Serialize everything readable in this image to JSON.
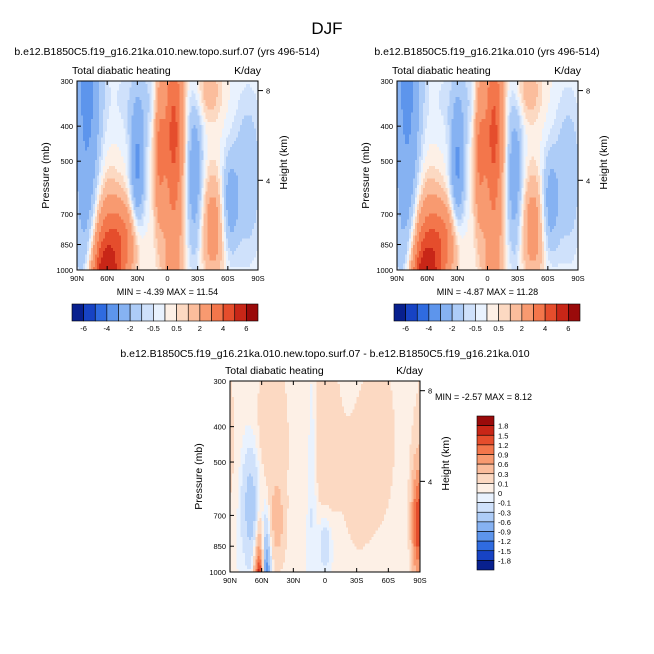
{
  "figure": {
    "title": "DJF"
  },
  "colors": {
    "colormap": [
      "#08208e",
      "#1743c4",
      "#2f6be0",
      "#5d95ec",
      "#86b2f2",
      "#adccf7",
      "#cfe1fb",
      "#e9f2fe",
      "#fdf0e6",
      "#fcd9c2",
      "#fbbd9c",
      "#f89a70",
      "#f3764b",
      "#e54d2c",
      "#c82617",
      "#9a0a0a"
    ],
    "line": "#000000"
  },
  "chart_data": [
    {
      "type": "heatmap",
      "title": "b.e12.B1850C5.f19_g16.21ka.010.new.topo.surf.07 (yrs 496-514)",
      "left_string": "Total diabatic heating",
      "right_string": "K/day",
      "ylabel": "Pressure (mb)",
      "ylabel_right": "Height (km)",
      "x_ticks": [
        "90N",
        "60N",
        "30N",
        "0",
        "30S",
        "60S",
        "90S"
      ],
      "y_ticks": [
        "300",
        "400",
        "500",
        "700",
        "850",
        "1000"
      ],
      "y_ticks_right": [
        "8",
        "4"
      ],
      "ylim": [
        1000,
        300
      ],
      "xlim": [
        90,
        -90
      ],
      "min_max_text": "MIN = -4.39  MAX = 11.54",
      "colorbar_labels": [
        "-6",
        "-4",
        "-2",
        "-0.5",
        "0.5",
        "2",
        "4",
        "6"
      ]
    },
    {
      "type": "heatmap",
      "title": "b.e12.B1850C5.f19_g16.21ka.010 (yrs 496-514)",
      "left_string": "Total diabatic heating",
      "right_string": "K/day",
      "ylabel": "Pressure (mb)",
      "ylabel_right": "Height (km)",
      "x_ticks": [
        "90N",
        "60N",
        "30N",
        "0",
        "30S",
        "60S",
        "90S"
      ],
      "y_ticks": [
        "300",
        "400",
        "500",
        "700",
        "850",
        "1000"
      ],
      "y_ticks_right": [
        "8",
        "4"
      ],
      "ylim": [
        1000,
        300
      ],
      "xlim": [
        90,
        -90
      ],
      "min_max_text": "MIN = -4.87  MAX = 11.28",
      "colorbar_labels": [
        "-6",
        "-4",
        "-2",
        "-0.5",
        "0.5",
        "2",
        "4",
        "6"
      ]
    },
    {
      "type": "heatmap",
      "title": "b.e12.B1850C5.f19_g16.21ka.010.new.topo.surf.07 - b.e12.B1850C5.f19_g16.21ka.010",
      "left_string": "Total diabatic heating",
      "right_string": "K/day",
      "ylabel": "Pressure (mb)",
      "ylabel_right": "Height (km)",
      "x_ticks": [
        "90N",
        "60N",
        "30N",
        "0",
        "30S",
        "60S",
        "90S"
      ],
      "y_ticks": [
        "300",
        "400",
        "500",
        "700",
        "850",
        "1000"
      ],
      "y_ticks_right": [
        "8",
        "4"
      ],
      "ylim": [
        1000,
        300
      ],
      "xlim": [
        90,
        -90
      ],
      "min_max_text": "MIN = -2.57  MAX = 8.12",
      "colorbar_labels": [
        "1.8",
        "1.5",
        "1.2",
        "0.9",
        "0.6",
        "0.3",
        "0.1",
        "0",
        "-0.1",
        "-0.3",
        "-0.6",
        "-0.9",
        "-1.2",
        "-1.5",
        "-1.8"
      ]
    }
  ]
}
